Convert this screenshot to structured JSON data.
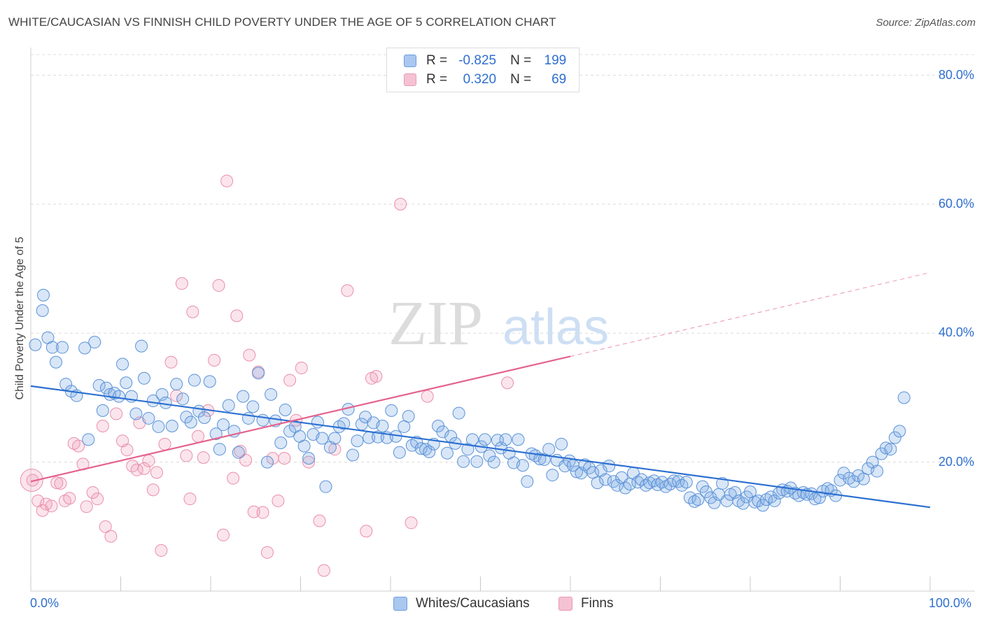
{
  "title": "WHITE/CAUCASIAN VS FINNISH CHILD POVERTY UNDER THE AGE OF 5 CORRELATION CHART",
  "source": "Source: ZipAtlas.com",
  "watermark": {
    "zip": "ZIP",
    "atlas": "atlas"
  },
  "legend_top": [
    {
      "r_label": "R =",
      "r_value": "-0.825",
      "n_label": "N =",
      "n_value": "199",
      "color": "#a9c7ef"
    },
    {
      "r_label": "R =",
      "r_value": "0.320",
      "n_label": "N =",
      "n_value": "69",
      "color": "#f5b8cc"
    }
  ],
  "legend_bottom": [
    {
      "label": "Whites/Caucasians",
      "color": "#a9c7ef"
    },
    {
      "label": "Finns",
      "color": "#f5b8cc"
    }
  ],
  "colors": {
    "blue_fill": "rgba(126,172,230,0.30)",
    "blue_stroke": "#5b92d8",
    "blue_line": "#2b6fd1",
    "pink_fill": "rgba(240,150,180,0.25)",
    "pink_stroke": "#ea8fab",
    "pink_line": "#e4628d",
    "grid": "#dcdcdc",
    "tick_label": "#2f6fd0"
  },
  "chart_data": {
    "type": "scatter",
    "title": "WHITE/CAUCASIAN VS FINNISH CHILD POVERTY UNDER THE AGE OF 5 CORRELATION CHART",
    "xlabel": "",
    "ylabel": "Child Poverty Under the Age of 5",
    "xlim": [
      0,
      100
    ],
    "ylim": [
      0,
      80
    ],
    "x_tick_labels": [
      "0.0%",
      "100.0%"
    ],
    "y_ticks": [
      20,
      40,
      60,
      80
    ],
    "y_tick_labels": [
      "20.0%",
      "40.0%",
      "60.0%",
      "80.0%"
    ],
    "grid": "horizontal dashed",
    "legend": "top-center",
    "series": [
      {
        "name": "Whites/Caucasians",
        "r": -0.825,
        "n": 199,
        "trend": {
          "x": [
            0,
            100
          ],
          "y": [
            31.8,
            13.0
          ]
        },
        "points": [
          [
            0.5,
            38.2
          ],
          [
            1.3,
            43.5
          ],
          [
            1.4,
            45.9
          ],
          [
            1.9,
            39.3
          ],
          [
            2.4,
            37.8
          ],
          [
            2.8,
            35.5
          ],
          [
            3.5,
            37.8
          ],
          [
            3.9,
            32.1
          ],
          [
            4.5,
            31.0
          ],
          [
            5.1,
            30.3
          ],
          [
            6.0,
            37.7
          ],
          [
            6.4,
            23.5
          ],
          [
            7.1,
            38.6
          ],
          [
            7.6,
            31.9
          ],
          [
            8.0,
            28.0
          ],
          [
            8.4,
            31.5
          ],
          [
            8.8,
            30.5
          ],
          [
            9.3,
            30.7
          ],
          [
            9.8,
            30.2
          ],
          [
            10.2,
            35.2
          ],
          [
            10.6,
            32.3
          ],
          [
            11.2,
            30.2
          ],
          [
            11.7,
            27.5
          ],
          [
            12.3,
            38.0
          ],
          [
            12.6,
            33.0
          ],
          [
            13.1,
            26.8
          ],
          [
            13.6,
            29.5
          ],
          [
            14.2,
            25.5
          ],
          [
            14.6,
            30.5
          ],
          [
            15.0,
            29.2
          ],
          [
            15.7,
            25.6
          ],
          [
            16.2,
            32.1
          ],
          [
            16.9,
            29.8
          ],
          [
            17.3,
            27.0
          ],
          [
            17.8,
            26.2
          ],
          [
            18.2,
            32.7
          ],
          [
            18.7,
            27.9
          ],
          [
            19.3,
            26.9
          ],
          [
            19.9,
            32.5
          ],
          [
            20.6,
            24.4
          ],
          [
            21.0,
            22.0
          ],
          [
            21.4,
            25.8
          ],
          [
            22.0,
            28.8
          ],
          [
            22.6,
            24.8
          ],
          [
            23.1,
            21.5
          ],
          [
            23.6,
            30.2
          ],
          [
            24.2,
            26.8
          ],
          [
            24.7,
            28.6
          ],
          [
            25.3,
            33.8
          ],
          [
            25.8,
            26.5
          ],
          [
            26.3,
            20.0
          ],
          [
            26.7,
            30.5
          ],
          [
            27.2,
            26.4
          ],
          [
            27.8,
            23.0
          ],
          [
            28.3,
            28.1
          ],
          [
            28.8,
            24.8
          ],
          [
            29.4,
            25.5
          ],
          [
            29.9,
            24.0
          ],
          [
            30.4,
            22.5
          ],
          [
            30.9,
            20.6
          ],
          [
            31.4,
            24.3
          ],
          [
            31.9,
            26.2
          ],
          [
            32.4,
            23.7
          ],
          [
            32.8,
            16.2
          ],
          [
            33.3,
            22.3
          ],
          [
            33.8,
            23.7
          ],
          [
            34.3,
            25.5
          ],
          [
            34.8,
            26.0
          ],
          [
            35.3,
            28.2
          ],
          [
            35.8,
            21.1
          ],
          [
            36.3,
            23.3
          ],
          [
            36.8,
            25.9
          ],
          [
            37.2,
            27.0
          ],
          [
            37.6,
            23.8
          ],
          [
            38.1,
            26.1
          ],
          [
            38.6,
            23.9
          ],
          [
            39.1,
            25.6
          ],
          [
            39.6,
            23.8
          ],
          [
            40.1,
            28.0
          ],
          [
            40.6,
            24.0
          ],
          [
            41.0,
            21.5
          ],
          [
            41.5,
            25.5
          ],
          [
            42.0,
            27.1
          ],
          [
            42.4,
            22.6
          ],
          [
            42.9,
            23.1
          ],
          [
            43.4,
            22.1
          ],
          [
            43.9,
            22.0
          ],
          [
            44.3,
            21.6
          ],
          [
            44.8,
            22.8
          ],
          [
            45.3,
            25.6
          ],
          [
            45.8,
            24.7
          ],
          [
            46.3,
            21.4
          ],
          [
            46.7,
            24.0
          ],
          [
            47.2,
            22.9
          ],
          [
            47.6,
            27.6
          ],
          [
            48.1,
            20.1
          ],
          [
            48.6,
            22.0
          ],
          [
            49.1,
            23.5
          ],
          [
            49.6,
            20.1
          ],
          [
            50.1,
            22.4
          ],
          [
            50.5,
            23.5
          ],
          [
            51.0,
            21.0
          ],
          [
            51.5,
            20.0
          ],
          [
            51.9,
            23.4
          ],
          [
            52.3,
            22.2
          ],
          [
            52.8,
            23.5
          ],
          [
            53.2,
            21.4
          ],
          [
            53.7,
            19.9
          ],
          [
            54.2,
            23.5
          ],
          [
            54.7,
            19.5
          ],
          [
            55.2,
            17.0
          ],
          [
            55.7,
            21.3
          ],
          [
            56.1,
            21.0
          ],
          [
            56.6,
            20.5
          ],
          [
            57.1,
            20.4
          ],
          [
            57.6,
            22.0
          ],
          [
            58.0,
            18.0
          ],
          [
            58.5,
            20.3
          ],
          [
            59.0,
            22.8
          ],
          [
            59.4,
            19.4
          ],
          [
            59.9,
            20.2
          ],
          [
            60.3,
            19.5
          ],
          [
            60.7,
            18.5
          ],
          [
            61.2,
            18.3
          ],
          [
            61.6,
            19.6
          ],
          [
            62.1,
            19.1
          ],
          [
            62.5,
            18.4
          ],
          [
            63.0,
            16.8
          ],
          [
            63.4,
            18.7
          ],
          [
            63.9,
            17.3
          ],
          [
            64.3,
            19.4
          ],
          [
            64.8,
            17.0
          ],
          [
            65.2,
            16.4
          ],
          [
            65.7,
            17.6
          ],
          [
            66.1,
            16.0
          ],
          [
            66.6,
            16.6
          ],
          [
            67.0,
            18.3
          ],
          [
            67.5,
            16.9
          ],
          [
            67.9,
            17.3
          ],
          [
            68.4,
            16.4
          ],
          [
            68.8,
            16.8
          ],
          [
            69.3,
            17.1
          ],
          [
            69.7,
            16.5
          ],
          [
            70.2,
            16.9
          ],
          [
            70.6,
            16.2
          ],
          [
            71.1,
            16.6
          ],
          [
            71.5,
            17.1
          ],
          [
            72.0,
            17.0
          ],
          [
            72.4,
            16.4
          ],
          [
            72.9,
            16.9
          ],
          [
            73.3,
            14.5
          ],
          [
            73.8,
            13.9
          ],
          [
            74.2,
            14.2
          ],
          [
            74.7,
            16.2
          ],
          [
            75.1,
            15.4
          ],
          [
            75.6,
            14.5
          ],
          [
            76.0,
            13.7
          ],
          [
            76.5,
            15.0
          ],
          [
            76.9,
            16.7
          ],
          [
            77.4,
            14.0
          ],
          [
            77.8,
            15.0
          ],
          [
            78.3,
            15.3
          ],
          [
            78.7,
            14.0
          ],
          [
            79.2,
            13.6
          ],
          [
            79.6,
            14.6
          ],
          [
            80.0,
            15.4
          ],
          [
            80.5,
            13.8
          ],
          [
            80.9,
            14.0
          ],
          [
            81.4,
            13.3
          ],
          [
            81.8,
            14.2
          ],
          [
            82.3,
            14.6
          ],
          [
            82.7,
            14.0
          ],
          [
            83.2,
            15.2
          ],
          [
            83.6,
            15.7
          ],
          [
            84.1,
            15.5
          ],
          [
            84.5,
            16.0
          ],
          [
            85.0,
            15.2
          ],
          [
            85.4,
            14.8
          ],
          [
            85.9,
            15.3
          ],
          [
            86.3,
            15.0
          ],
          [
            86.8,
            15.1
          ],
          [
            87.2,
            14.3
          ],
          [
            87.7,
            14.5
          ],
          [
            88.1,
            15.5
          ],
          [
            88.6,
            15.9
          ],
          [
            89.0,
            15.6
          ],
          [
            89.5,
            14.8
          ],
          [
            90.0,
            17.2
          ],
          [
            90.4,
            18.3
          ],
          [
            91.0,
            17.5
          ],
          [
            91.5,
            17.0
          ],
          [
            92.0,
            17.9
          ],
          [
            92.6,
            17.4
          ],
          [
            93.1,
            19.0
          ],
          [
            93.6,
            20.0
          ],
          [
            94.1,
            18.6
          ],
          [
            94.6,
            21.3
          ],
          [
            95.1,
            22.2
          ],
          [
            95.6,
            22.0
          ],
          [
            96.1,
            23.8
          ],
          [
            96.6,
            24.8
          ],
          [
            97.1,
            30.0
          ]
        ]
      },
      {
        "name": "Finns",
        "r": 0.32,
        "n": 69,
        "trend": {
          "x": [
            0,
            60
          ],
          "y": [
            17.0,
            36.4
          ]
        },
        "trend_extension": {
          "x": [
            60,
            100
          ],
          "y": [
            36.4,
            49.4
          ]
        },
        "points": [
          [
            0.2,
            17.2
          ],
          [
            0.8,
            14.0
          ],
          [
            1.3,
            12.5
          ],
          [
            1.7,
            13.5
          ],
          [
            2.3,
            13.2
          ],
          [
            2.9,
            16.8
          ],
          [
            3.3,
            16.7
          ],
          [
            3.8,
            14.0
          ],
          [
            4.3,
            14.4
          ],
          [
            4.8,
            22.9
          ],
          [
            5.3,
            22.5
          ],
          [
            5.8,
            19.7
          ],
          [
            6.2,
            13.1
          ],
          [
            6.9,
            15.3
          ],
          [
            7.4,
            14.3
          ],
          [
            8.0,
            25.6
          ],
          [
            8.3,
            10.0
          ],
          [
            8.9,
            8.5
          ],
          [
            9.5,
            27.5
          ],
          [
            10.2,
            23.3
          ],
          [
            10.7,
            21.9
          ],
          [
            11.3,
            19.4
          ],
          [
            11.8,
            18.8
          ],
          [
            12.1,
            26.1
          ],
          [
            12.6,
            19.0
          ],
          [
            13.1,
            20.2
          ],
          [
            13.6,
            15.7
          ],
          [
            14.0,
            18.4
          ],
          [
            14.5,
            6.3
          ],
          [
            14.9,
            22.8
          ],
          [
            15.6,
            35.5
          ],
          [
            16.2,
            30.3
          ],
          [
            16.8,
            47.7
          ],
          [
            17.3,
            21.0
          ],
          [
            17.7,
            14.3
          ],
          [
            18.0,
            43.3
          ],
          [
            18.6,
            24.0
          ],
          [
            19.2,
            20.7
          ],
          [
            19.7,
            28.0
          ],
          [
            20.4,
            35.8
          ],
          [
            20.9,
            47.4
          ],
          [
            21.4,
            8.7
          ],
          [
            21.8,
            63.6
          ],
          [
            22.5,
            17.5
          ],
          [
            22.9,
            42.7
          ],
          [
            23.3,
            21.7
          ],
          [
            23.9,
            20.3
          ],
          [
            24.3,
            36.6
          ],
          [
            24.8,
            12.3
          ],
          [
            25.3,
            34.0
          ],
          [
            25.8,
            12.2
          ],
          [
            26.3,
            6.0
          ],
          [
            26.9,
            20.6
          ],
          [
            27.5,
            14.0
          ],
          [
            28.2,
            20.6
          ],
          [
            28.8,
            32.7
          ],
          [
            29.5,
            26.5
          ],
          [
            30.1,
            34.6
          ],
          [
            30.9,
            20.0
          ],
          [
            32.1,
            10.9
          ],
          [
            32.6,
            3.2
          ],
          [
            33.8,
            22.0
          ],
          [
            35.2,
            46.6
          ],
          [
            37.9,
            33.0
          ],
          [
            37.3,
            9.3
          ],
          [
            38.4,
            33.3
          ],
          [
            41.1,
            60.0
          ],
          [
            42.3,
            10.6
          ],
          [
            44.1,
            30.2
          ],
          [
            53.0,
            32.3
          ]
        ]
      }
    ]
  }
}
